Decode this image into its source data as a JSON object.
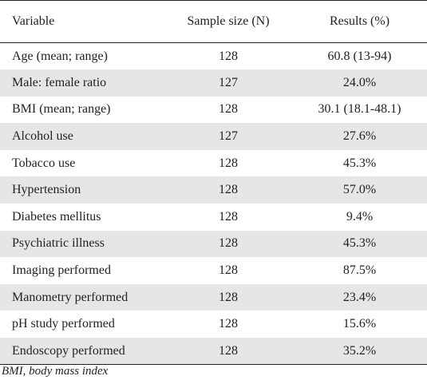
{
  "table": {
    "headers": [
      "Variable",
      "Sample size (N)",
      "Results (%)"
    ],
    "rows": [
      {
        "variable": "Age (mean; range)",
        "n": "128",
        "result": "60.8 (13-94)"
      },
      {
        "variable": "Male: female ratio",
        "n": "127",
        "result": "24.0%"
      },
      {
        "variable": "BMI (mean; range)",
        "n": "128",
        "result": "30.1 (18.1-48.1)"
      },
      {
        "variable": "Alcohol use",
        "n": "127",
        "result": "27.6%"
      },
      {
        "variable": "Tobacco use",
        "n": "128",
        "result": "45.3%"
      },
      {
        "variable": "Hypertension",
        "n": "128",
        "result": "57.0%"
      },
      {
        "variable": "Diabetes mellitus",
        "n": "128",
        "result": "9.4%"
      },
      {
        "variable": "Psychiatric illness",
        "n": "128",
        "result": "45.3%"
      },
      {
        "variable": "Imaging performed",
        "n": "128",
        "result": "87.5%"
      },
      {
        "variable": "Manometry performed",
        "n": "128",
        "result": "23.4%"
      },
      {
        "variable": "pH study performed",
        "n": "128",
        "result": "15.6%"
      },
      {
        "variable": "Endoscopy performed",
        "n": "128",
        "result": "35.2%"
      }
    ]
  },
  "footnote": "BMI, body mass index",
  "colors": {
    "text": "#231f20",
    "row_shade": "#e6e6e7",
    "rule": "#231f20"
  }
}
